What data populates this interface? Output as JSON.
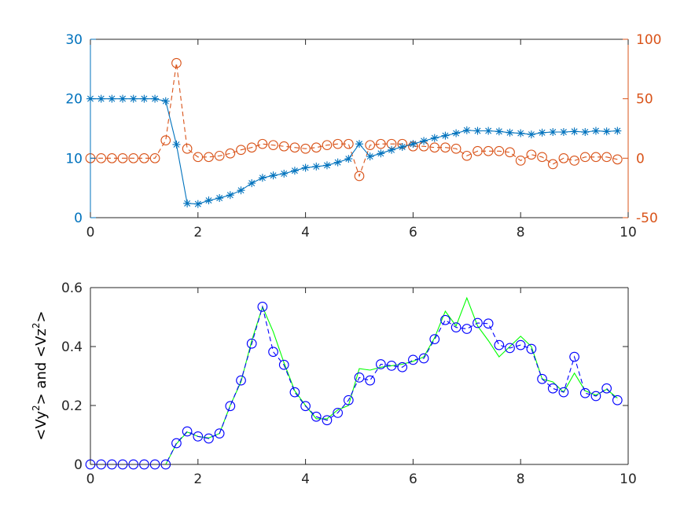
{
  "chart_data": [
    {
      "type": "line",
      "title": "",
      "xlabel": "",
      "ylabel": "",
      "ylabel_right": "",
      "xlim": [
        0,
        10
      ],
      "ylim": [
        0,
        30
      ],
      "ylim_right": [
        -50,
        100
      ],
      "xticks": [
        0,
        2,
        4,
        6,
        8,
        10
      ],
      "yticks": [
        0,
        10,
        20,
        30
      ],
      "yticks_right": [
        -50,
        0,
        50,
        100
      ],
      "grid": false,
      "colors": {
        "left": "#0072BD",
        "right": "#D95319"
      },
      "series": [
        {
          "axis": "left",
          "line_style": "solid",
          "marker": "asterisk",
          "x": [
            0,
            0.2,
            0.4,
            0.6,
            0.8,
            1.0,
            1.2,
            1.4,
            1.6,
            1.8,
            2.0,
            2.2,
            2.4,
            2.6,
            2.8,
            3.0,
            3.2,
            3.4,
            3.6,
            3.8,
            4.0,
            4.2,
            4.4,
            4.6,
            4.8,
            5.0,
            5.2,
            5.4,
            5.6,
            5.8,
            6.0,
            6.2,
            6.4,
            6.6,
            6.8,
            7.0,
            7.2,
            7.4,
            7.6,
            7.8,
            8.0,
            8.2,
            8.4,
            8.6,
            8.8,
            9.0,
            9.2,
            9.4,
            9.6,
            9.8
          ],
          "values": [
            20,
            20,
            20,
            20,
            20,
            20,
            20,
            19.6,
            12.3,
            2.4,
            2.3,
            2.9,
            3.3,
            3.8,
            4.6,
            5.8,
            6.7,
            7.1,
            7.4,
            7.9,
            8.4,
            8.6,
            8.8,
            9.3,
            9.9,
            12.4,
            10.3,
            10.8,
            11.4,
            11.9,
            12.4,
            12.9,
            13.4,
            13.8,
            14.2,
            14.7,
            14.6,
            14.6,
            14.5,
            14.3,
            14.2,
            14.0,
            14.3,
            14.4,
            14.4,
            14.5,
            14.4,
            14.6,
            14.5,
            14.6
          ]
        },
        {
          "axis": "right",
          "line_style": "dashed",
          "marker": "circle",
          "x": [
            0,
            0.2,
            0.4,
            0.6,
            0.8,
            1.0,
            1.2,
            1.4,
            1.6,
            1.8,
            2.0,
            2.2,
            2.4,
            2.6,
            2.8,
            3.0,
            3.2,
            3.4,
            3.6,
            3.8,
            4.0,
            4.2,
            4.4,
            4.6,
            4.8,
            5.0,
            5.2,
            5.4,
            5.6,
            5.8,
            6.0,
            6.2,
            6.4,
            6.6,
            6.8,
            7.0,
            7.2,
            7.4,
            7.6,
            7.8,
            8.0,
            8.2,
            8.4,
            8.6,
            8.8,
            9.0,
            9.2,
            9.4,
            9.6,
            9.8
          ],
          "values": [
            0,
            0,
            0,
            0,
            0,
            0,
            0,
            15,
            80,
            8,
            1,
            1,
            2,
            4,
            7,
            9,
            12,
            11,
            10,
            9,
            8,
            9,
            11,
            12,
            12,
            -15,
            11,
            12,
            12,
            12,
            10,
            10,
            9,
            9,
            8,
            2,
            6,
            6,
            6,
            5,
            -2,
            3,
            1,
            -5,
            0,
            -2,
            1,
            1,
            1,
            -1
          ]
        }
      ]
    },
    {
      "type": "line",
      "title": "",
      "xlabel": "",
      "ylabel": "<Vy^2> and <Vz^2>",
      "ylabel_parts": [
        "<Vy",
        "2",
        "> and <Vz",
        "2",
        ">"
      ],
      "xlim": [
        0,
        10
      ],
      "ylim": [
        0,
        0.6
      ],
      "xticks": [
        0,
        2,
        4,
        6,
        8,
        10
      ],
      "yticks": [
        0,
        0.2,
        0.4,
        0.6
      ],
      "grid": false,
      "series": [
        {
          "line_style": "dashed",
          "marker": "circle",
          "color": "#0000FF",
          "x": [
            0,
            0.2,
            0.4,
            0.6,
            0.8,
            1.0,
            1.2,
            1.4,
            1.6,
            1.8,
            2.0,
            2.2,
            2.4,
            2.6,
            2.8,
            3.0,
            3.2,
            3.4,
            3.6,
            3.8,
            4.0,
            4.2,
            4.4,
            4.6,
            4.8,
            5.0,
            5.2,
            5.4,
            5.6,
            5.8,
            6.0,
            6.2,
            6.4,
            6.6,
            6.8,
            7.0,
            7.2,
            7.4,
            7.6,
            7.8,
            8.0,
            8.2,
            8.4,
            8.6,
            8.8,
            9.0,
            9.2,
            9.4,
            9.6,
            9.8
          ],
          "values": [
            0,
            0,
            0,
            0,
            0,
            0,
            0,
            0,
            0.072,
            0.112,
            0.095,
            0.088,
            0.105,
            0.198,
            0.285,
            0.41,
            0.535,
            0.382,
            0.338,
            0.245,
            0.198,
            0.162,
            0.15,
            0.175,
            0.218,
            0.295,
            0.285,
            0.34,
            0.335,
            0.33,
            0.355,
            0.36,
            0.425,
            0.49,
            0.465,
            0.46,
            0.48,
            0.478,
            0.405,
            0.395,
            0.405,
            0.392,
            0.29,
            0.258,
            0.245,
            0.365,
            0.242,
            0.232,
            0.258,
            0.218
          ]
        },
        {
          "line_style": "solid",
          "marker": "none",
          "color": "#00FF00",
          "x": [
            0,
            0.2,
            0.4,
            0.6,
            0.8,
            1.0,
            1.2,
            1.4,
            1.6,
            1.8,
            2.0,
            2.2,
            2.4,
            2.6,
            2.8,
            3.0,
            3.2,
            3.4,
            3.6,
            3.8,
            4.0,
            4.2,
            4.4,
            4.6,
            4.8,
            5.0,
            5.2,
            5.4,
            5.6,
            5.8,
            6.0,
            6.2,
            6.4,
            6.6,
            6.8,
            7.0,
            7.2,
            7.4,
            7.6,
            7.8,
            8.0,
            8.2,
            8.4,
            8.6,
            8.8,
            9.0,
            9.2,
            9.4,
            9.6,
            9.8
          ],
          "values": [
            0,
            0,
            0,
            0,
            0,
            0,
            0,
            0,
            0.07,
            0.11,
            0.095,
            0.09,
            0.105,
            0.2,
            0.28,
            0.42,
            0.535,
            0.45,
            0.345,
            0.25,
            0.2,
            0.155,
            0.155,
            0.185,
            0.2,
            0.325,
            0.32,
            0.33,
            0.335,
            0.34,
            0.35,
            0.365,
            0.43,
            0.52,
            0.47,
            0.565,
            0.47,
            0.42,
            0.365,
            0.4,
            0.435,
            0.4,
            0.29,
            0.28,
            0.245,
            0.31,
            0.25,
            0.235,
            0.255,
            0.225
          ]
        }
      ]
    }
  ]
}
